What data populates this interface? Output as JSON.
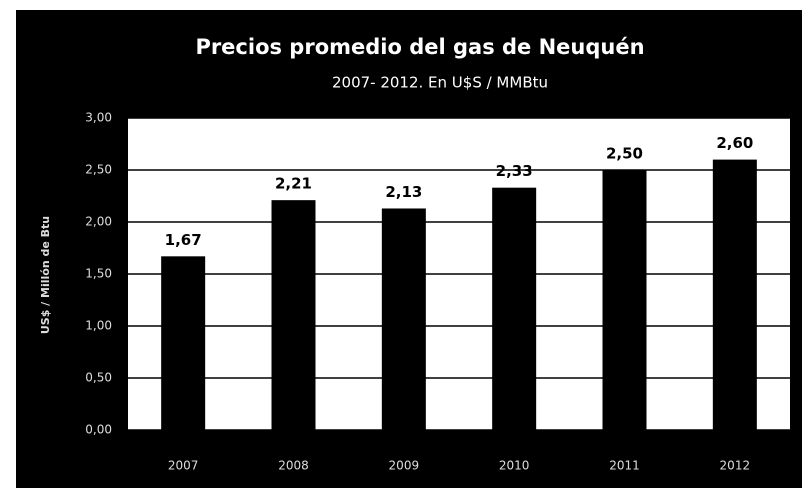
{
  "chart_data": {
    "type": "bar",
    "title": "Precios promedio del gas de Neuquén",
    "subtitle": "2007- 2012. En U$S / MMBtu",
    "y_label": "US$ / Millón de Btu",
    "categories": [
      "2007",
      "2008",
      "2009",
      "2010",
      "2011",
      "2012"
    ],
    "values": [
      1.67,
      2.21,
      2.13,
      2.33,
      2.5,
      2.6
    ],
    "value_labels": [
      "1,67",
      "2,21",
      "2,13",
      "2,33",
      "2,50",
      "2,60"
    ],
    "color": "#000000",
    "ylim": [
      0,
      3
    ],
    "yticks": [
      {
        "value": 0,
        "label": "0,00"
      },
      {
        "value": 0.5,
        "label": "0,50"
      },
      {
        "value": 1,
        "label": "1,00"
      },
      {
        "value": 1.5,
        "label": "1,50"
      },
      {
        "value": 2,
        "label": "2,00"
      },
      {
        "value": 2.5,
        "label": "2,50"
      },
      {
        "value": 3,
        "label": "3,00"
      }
    ],
    "grid": true
  }
}
